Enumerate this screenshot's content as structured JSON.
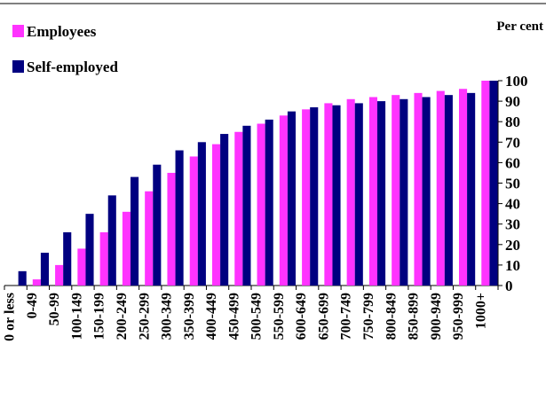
{
  "chart_data": {
    "type": "bar",
    "y_axis_label": "Per cent",
    "categories": [
      "0 or less",
      "0-49",
      "50-99",
      "100-149",
      "150-199",
      "200-249",
      "250-299",
      "300-349",
      "350-399",
      "400-449",
      "450-499",
      "500-549",
      "550-599",
      "600-649",
      "650-699",
      "700-749",
      "750-799",
      "800-849",
      "850-899",
      "900-949",
      "950-999",
      "1000+"
    ],
    "series": [
      {
        "name": "Employees",
        "color": "#ff33ff",
        "values": [
          0,
          3,
          10,
          18,
          26,
          36,
          46,
          55,
          63,
          69,
          75,
          79,
          83,
          86,
          89,
          91,
          92,
          93,
          94,
          95,
          96,
          100
        ]
      },
      {
        "name": "Self-employed",
        "color": "#000080",
        "values": [
          7,
          16,
          26,
          35,
          44,
          53,
          59,
          66,
          70,
          74,
          78,
          81,
          85,
          87,
          88,
          89,
          90,
          91,
          92,
          93,
          94,
          100
        ]
      }
    ],
    "ylim": [
      0,
      100
    ],
    "yticks": [
      0,
      10,
      20,
      30,
      40,
      50,
      60,
      70,
      80,
      90,
      100
    ],
    "y_axis_side": "right",
    "legend": "top-left",
    "grid": false
  }
}
